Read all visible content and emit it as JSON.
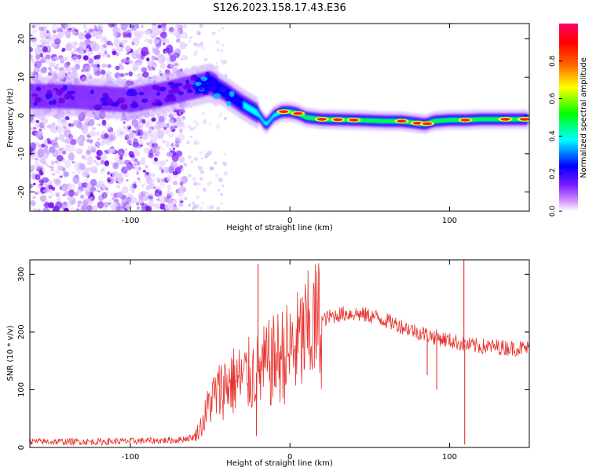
{
  "figure_title": "S126.2023.158.17.43.E36",
  "colors": {
    "snr_line": "#e8312c",
    "background": "#ffffff",
    "axis": "#000000"
  },
  "chart_data": [
    {
      "type": "heatmap",
      "xlabel": "Height of straight line (km)",
      "ylabel": "Frequency (Hz)",
      "xlim": [
        -163,
        150
      ],
      "ylim": [
        -25,
        24
      ],
      "x_ticks": [
        -100,
        0,
        100
      ],
      "y_ticks": [
        20,
        10,
        0,
        -10,
        -20
      ],
      "colorbar": {
        "label": "Normalized spectral amplitude",
        "range": [
          0,
          1
        ],
        "ticks": [
          "0.0",
          "0.2",
          "0.4",
          "0.6",
          "0.8"
        ],
        "colormap": "rainbow",
        "stops": [
          "#ffffff",
          "#cc88ff",
          "#7a1cff",
          "#0000ff",
          "#00ffff",
          "#00ff00",
          "#ffff00",
          "#ff6600",
          "#ff0000",
          "#ff0066"
        ]
      },
      "ridge": {
        "x": [
          -160,
          -140,
          -120,
          -100,
          -80,
          -60,
          -50,
          -40,
          -30,
          -20,
          -15,
          -10,
          -5,
          0,
          5,
          10,
          20,
          40,
          60,
          70,
          80,
          85,
          90,
          100,
          110,
          120,
          130,
          140,
          150
        ],
        "y": [
          5,
          5,
          4.5,
          4,
          5.5,
          7.5,
          8.5,
          6,
          3,
          0.5,
          -2.5,
          0,
          1,
          1,
          0.5,
          -0.5,
          -1,
          -1.2,
          -1.5,
          -1.5,
          -2,
          -2.3,
          -1.5,
          -1.2,
          -1.2,
          -1,
          -1,
          -1,
          -1
        ],
        "hotspots_x": [
          -4,
          5,
          20,
          30,
          40,
          70,
          80,
          86,
          110,
          135,
          147
        ]
      },
      "grid": false,
      "legend": "colorbar-right"
    },
    {
      "type": "line",
      "xlabel": "Height of straight line (km)",
      "ylabel": "SNR (10 * v/v)",
      "xlim": [
        -163,
        150
      ],
      "ylim": [
        0,
        325
      ],
      "x_ticks": [
        -100,
        0,
        100
      ],
      "y_ticks": [
        0,
        100,
        200,
        300
      ],
      "envelope": {
        "x": [
          -163,
          -140,
          -120,
          -100,
          -80,
          -70,
          -60,
          -55,
          -50,
          -45,
          -40,
          -35,
          -30,
          -25,
          -20,
          -15,
          -10,
          -5,
          0,
          5,
          10,
          15,
          20,
          25,
          30,
          35,
          40,
          45,
          50,
          55,
          60,
          70,
          80,
          90,
          100,
          105,
          110,
          115,
          120,
          130,
          140,
          150
        ],
        "y": [
          10,
          10,
          10,
          11,
          12,
          13,
          18,
          40,
          80,
          95,
          110,
          115,
          118,
          125,
          130,
          140,
          150,
          160,
          165,
          178,
          195,
          210,
          220,
          226,
          230,
          232,
          232,
          230,
          228,
          225,
          220,
          210,
          200,
          192,
          185,
          182,
          178,
          176,
          175,
          174,
          172,
          172
        ]
      },
      "spikes": [
        {
          "x": -20,
          "y": 318
        },
        {
          "x": -21,
          "y": 20
        },
        {
          "x": 109,
          "y": 325
        },
        {
          "x": 109.5,
          "y": 5
        },
        {
          "x": 86,
          "y": 125
        },
        {
          "x": 92,
          "y": 100
        }
      ],
      "grid": false,
      "legend": "none"
    }
  ]
}
